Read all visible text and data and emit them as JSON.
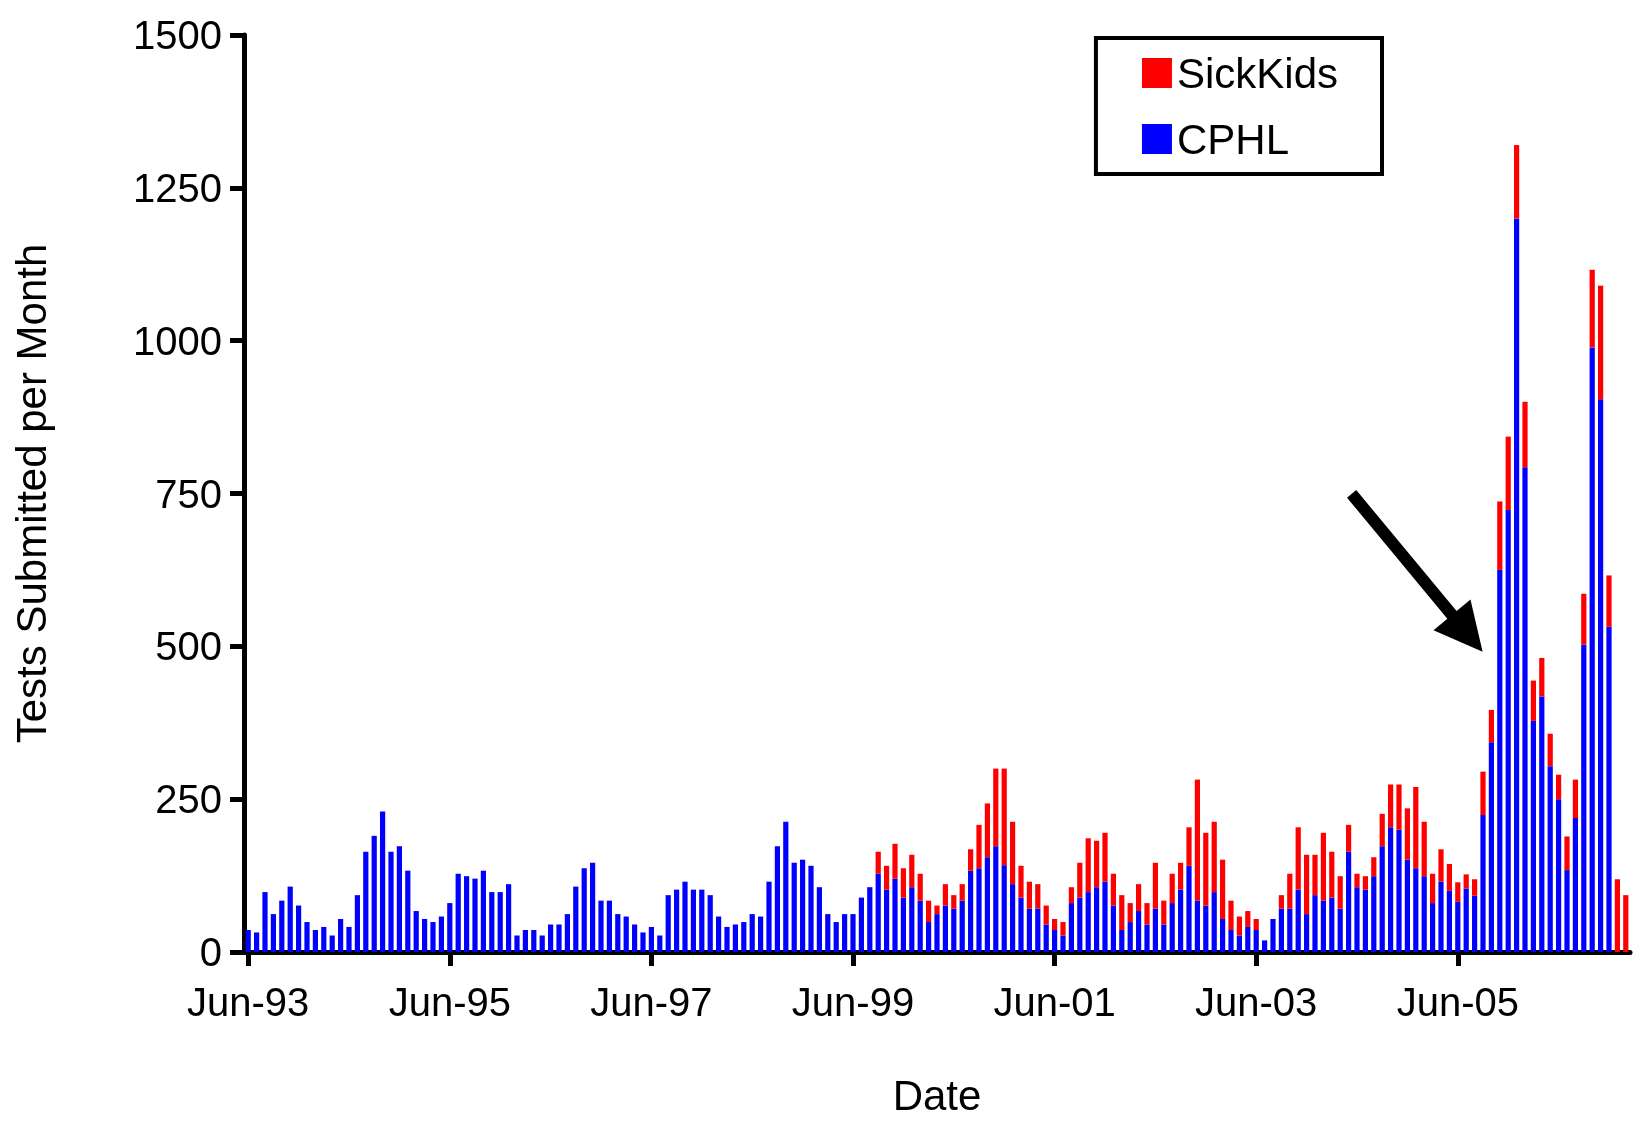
{
  "chart_data": {
    "type": "bar",
    "stacked": true,
    "xlabel": "Date",
    "ylabel": "Tests Submitted per Month",
    "legend": "top right",
    "grid": false,
    "ylim": [
      0,
      1500
    ],
    "yticks": [
      0,
      250,
      500,
      750,
      1000,
      1250,
      1500
    ],
    "categories": [
      "Jun-93",
      null,
      null,
      null,
      null,
      null,
      null,
      null,
      null,
      null,
      null,
      null,
      null,
      null,
      null,
      null,
      null,
      null,
      null,
      null,
      null,
      null,
      null,
      null,
      "Jun-95",
      null,
      null,
      null,
      null,
      null,
      null,
      null,
      null,
      null,
      null,
      null,
      null,
      null,
      null,
      null,
      null,
      null,
      null,
      null,
      null,
      null,
      null,
      null,
      "Jun-97",
      null,
      null,
      null,
      null,
      null,
      null,
      null,
      null,
      null,
      null,
      null,
      null,
      null,
      null,
      null,
      null,
      null,
      null,
      null,
      null,
      null,
      null,
      null,
      "Jun-99",
      null,
      null,
      null,
      null,
      null,
      null,
      null,
      null,
      null,
      null,
      null,
      null,
      null,
      null,
      null,
      null,
      null,
      null,
      null,
      null,
      null,
      null,
      null,
      "Jun-01",
      null,
      null,
      null,
      null,
      null,
      null,
      null,
      null,
      null,
      null,
      null,
      null,
      null,
      null,
      null,
      null,
      null,
      null,
      null,
      null,
      null,
      null,
      null,
      "Jun-03",
      null,
      null,
      null,
      null,
      null,
      null,
      null,
      null,
      null,
      null,
      null,
      null,
      null,
      null,
      null,
      null,
      null,
      null,
      null,
      null,
      null,
      null,
      null,
      "Jun-05",
      null,
      null,
      null,
      null,
      null,
      null,
      null,
      null,
      null,
      null,
      null,
      null,
      null,
      null,
      null,
      null,
      null,
      null,
      null,
      null
    ],
    "series": [
      {
        "name": "CPHL",
        "color": "#0000ff",
        "values": [
          36,
          32,
          98,
          62,
          84,
          107,
          76,
          49,
          36,
          41,
          27,
          54,
          41,
          93,
          164,
          190,
          230,
          164,
          173,
          133,
          67,
          54,
          49,
          58,
          80,
          128,
          124,
          120,
          133,
          98,
          98,
          111,
          27,
          36,
          36,
          27,
          45,
          45,
          62,
          107,
          137,
          146,
          84,
          84,
          62,
          58,
          45,
          32,
          41,
          27,
          93,
          102,
          115,
          102,
          102,
          93,
          58,
          41,
          45,
          49,
          62,
          58,
          115,
          173,
          213,
          146,
          151,
          141,
          106,
          62,
          49,
          62,
          62,
          89,
          106,
          128,
          102,
          120,
          89,
          106,
          84,
          49,
          62,
          76,
          71,
          84,
          133,
          137,
          155,
          173,
          142,
          111,
          89,
          71,
          71,
          45,
          36,
          27,
          80,
          89,
          98,
          106,
          115,
          76,
          36,
          49,
          67,
          45,
          71,
          45,
          80,
          102,
          141,
          84,
          76,
          98,
          54,
          36,
          27,
          41,
          36,
          19,
          54,
          71,
          71,
          102,
          62,
          93,
          84,
          89,
          71,
          164,
          106,
          102,
          124,
          173,
          204,
          200,
          151,
          137,
          124,
          80,
          115,
          100,
          82,
          104,
          92,
          224,
          343,
          625,
          723,
          1200,
          793,
          378,
          418,
          304,
          250,
          134,
          219,
          503,
          989,
          904,
          532,
          0,
          0
        ]
      },
      {
        "name": "SickKids",
        "color": "#ff0000",
        "values": [
          0,
          0,
          0,
          0,
          0,
          0,
          0,
          0,
          0,
          0,
          0,
          0,
          0,
          0,
          0,
          0,
          0,
          0,
          0,
          0,
          0,
          0,
          0,
          0,
          0,
          0,
          0,
          0,
          0,
          0,
          0,
          0,
          0,
          0,
          0,
          0,
          0,
          0,
          0,
          0,
          0,
          0,
          0,
          0,
          0,
          0,
          0,
          0,
          0,
          0,
          0,
          0,
          0,
          0,
          0,
          0,
          0,
          0,
          0,
          0,
          0,
          0,
          0,
          0,
          0,
          0,
          0,
          0,
          0,
          0,
          0,
          0,
          0,
          0,
          0,
          36,
          39,
          57,
          48,
          53,
          44,
          35,
          14,
          35,
          22,
          27,
          35,
          71,
          88,
          127,
          158,
          102,
          52,
          44,
          40,
          31,
          18,
          22,
          26,
          57,
          88,
          76,
          80,
          52,
          57,
          31,
          44,
          35,
          75,
          39,
          48,
          44,
          63,
          198,
          119,
          115,
          97,
          48,
          31,
          26,
          18,
          0,
          0,
          22,
          57,
          102,
          97,
          66,
          111,
          75,
          53,
          44,
          22,
          22,
          31,
          53,
          70,
          74,
          84,
          133,
          89,
          48,
          53,
          44,
          32,
          23,
          27,
          71,
          53,
          112,
          120,
          120,
          107,
          66,
          63,
          53,
          40,
          55,
          63,
          83,
          127,
          186,
          84,
          119,
          93
        ]
      }
    ]
  }
}
